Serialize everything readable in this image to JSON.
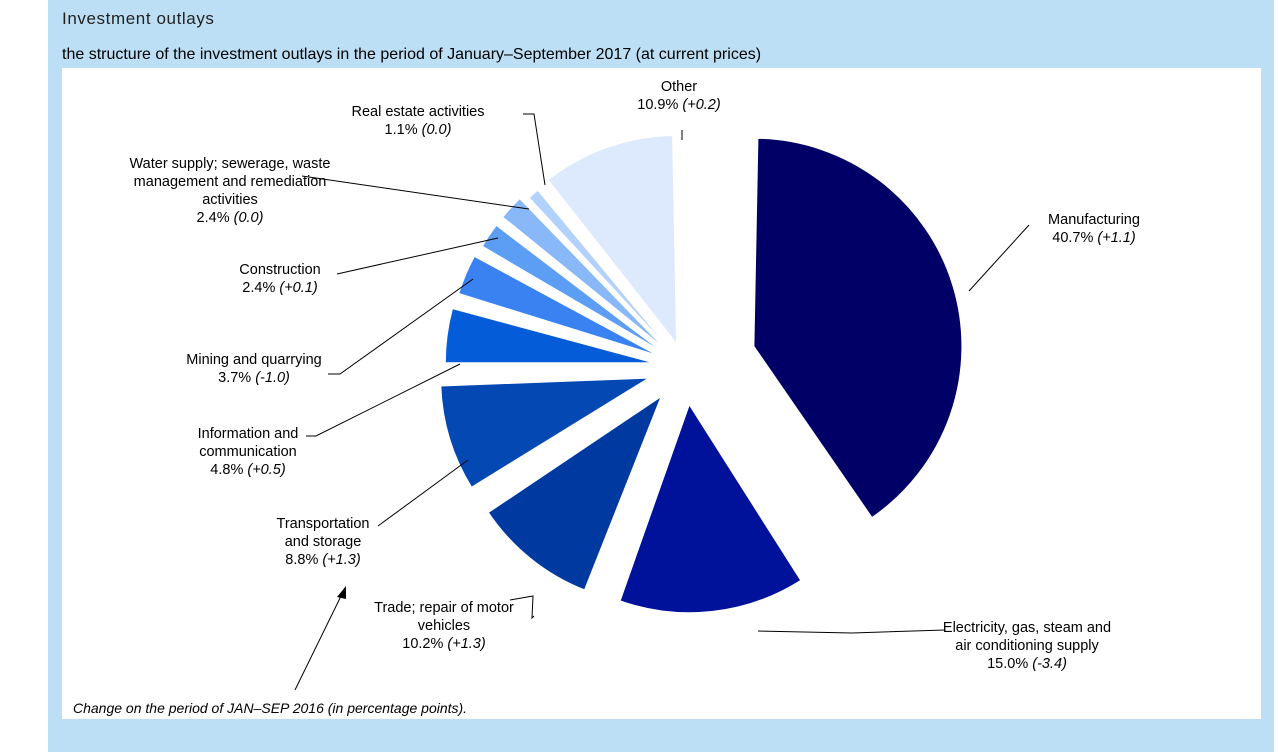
{
  "header": {
    "title": "Investment outlays",
    "subtitle": "the structure of the investment outlays in the period of January–September 2017 (at current prices)"
  },
  "chart_data": {
    "type": "pie",
    "unit": "%",
    "slices": [
      {
        "label_lines": [
          "Manufacturing"
        ],
        "value": 40.7,
        "value_text": "40.7%",
        "change": "(+1.1)",
        "color": "#000066"
      },
      {
        "label_lines": [
          "Electricity, gas, steam and",
          "air conditioning supply"
        ],
        "value": 15.0,
        "value_text": "15.0%",
        "change": "(-3.4)",
        "color": "#00129a"
      },
      {
        "label_lines": [
          "Trade; repair of motor",
          "vehicles"
        ],
        "value": 10.2,
        "value_text": "10.2%",
        "change": "(+1.3)",
        "color": "#003aa0"
      },
      {
        "label_lines": [
          "Transportation",
          "and  storage"
        ],
        "value": 8.8,
        "value_text": "8.8%",
        "change": "(+1.3)",
        "color": "#0448b4"
      },
      {
        "label_lines": [
          "Information and",
          "communication"
        ],
        "value": 4.8,
        "value_text": "4.8%",
        "change": "(+0.5)",
        "color": "#055cd8"
      },
      {
        "label_lines": [
          "Mining and quarrying"
        ],
        "value": 3.7,
        "value_text": "3.7%",
        "change": "(-1.0)",
        "color": "#3a82f2"
      },
      {
        "label_lines": [
          "Construction"
        ],
        "value": 2.4,
        "value_text": "2.4%",
        "change": "(+0.1)",
        "color": "#5d9ef5"
      },
      {
        "label_lines": [
          "Water supply; sewerage, waste",
          "management and remediation",
          "activities"
        ],
        "value": 2.4,
        "value_text": "2.4%",
        "change": "(0.0)",
        "color": "#88b8f8"
      },
      {
        "label_lines": [
          "Real estate activities"
        ],
        "value": 1.1,
        "value_text": "1.1%",
        "change": "(0.0)",
        "color": "#b2d2fb"
      },
      {
        "label_lines": [
          "Other"
        ],
        "value": 10.9,
        "value_text": "10.9%",
        "change": "(+0.2)",
        "color": "#dde9fc"
      }
    ]
  },
  "footnote": "Change on the period of JAN–SEP 2016 (in percentage points)."
}
